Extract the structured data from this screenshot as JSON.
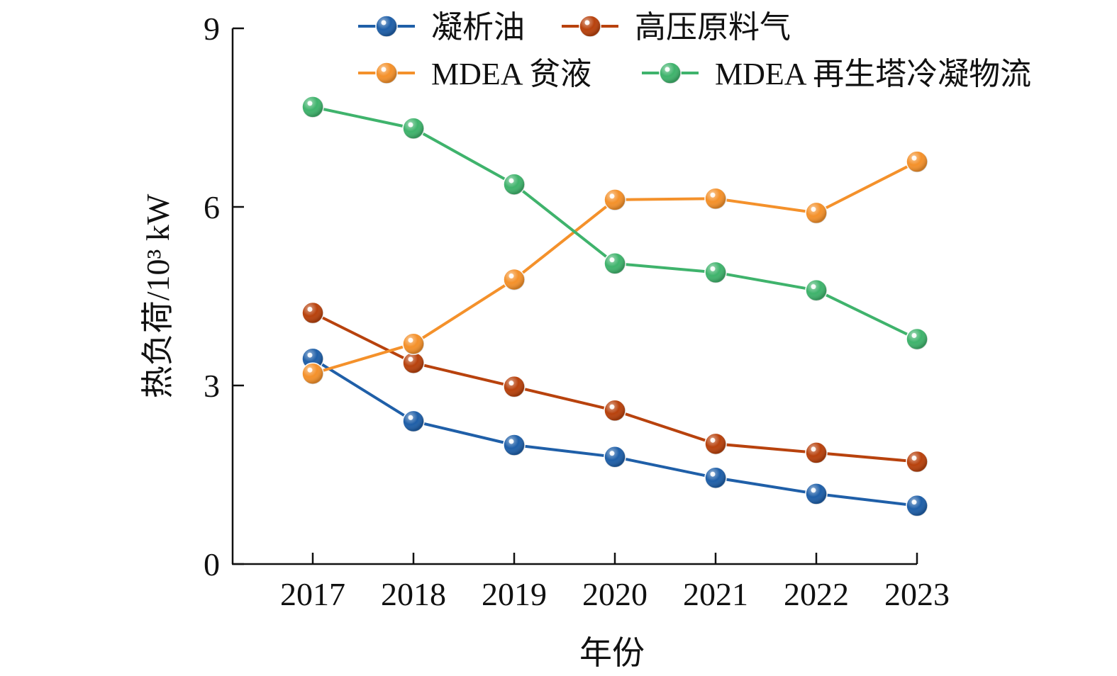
{
  "chart_data": {
    "type": "line",
    "title": "",
    "xlabel": "年份",
    "ylabel": "热负荷/10³ kW",
    "categories": [
      "2017",
      "2018",
      "2019",
      "2020",
      "2021",
      "2022",
      "2023"
    ],
    "ylim": [
      0,
      9
    ],
    "yticks": [
      0,
      3,
      6,
      9
    ],
    "grid": false,
    "legend_position": "top",
    "series": [
      {
        "name": "凝析油",
        "color": "#1f5fa8",
        "values": [
          3.45,
          2.4,
          2.0,
          1.8,
          1.45,
          1.18,
          0.98
        ]
      },
      {
        "name": "高压原料气",
        "color": "#b8420d",
        "values": [
          4.22,
          3.38,
          2.98,
          2.58,
          2.02,
          1.87,
          1.72
        ]
      },
      {
        "name": "MDEA 贫液",
        "color": "#f4912b",
        "values": [
          3.2,
          3.7,
          4.78,
          6.12,
          6.14,
          5.9,
          6.76
        ]
      },
      {
        "name": "MDEA 再生塔冷凝物流",
        "color": "#3fb36c",
        "values": [
          7.68,
          7.32,
          6.38,
          5.05,
          4.9,
          4.6,
          3.78
        ]
      }
    ]
  }
}
